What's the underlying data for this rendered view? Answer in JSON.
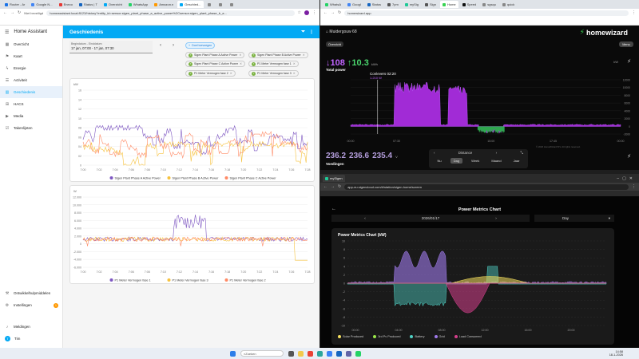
{
  "left_browser": {
    "tabs": [
      "Router - Ar",
      "Google N...",
      "Eneco",
      "Status | T",
      "Overzicht",
      "WhatsApp",
      "Amazon.n",
      "Geschied...",
      "",
      "",
      ""
    ],
    "url_security": "Niet beveiligd",
    "url": "homeassistant.local:8123/history?entity_id=sensor.sigen_plant_phase_a_active_power%2Csensor.sigen_plant_phase_b_a..."
  },
  "right_browser_top": {
    "tabs": [
      "WhatsA",
      "Googl",
      "Status",
      "7pm",
      "mySig",
      "Sign",
      "Home",
      "Speed",
      "sgsqu",
      "quick"
    ],
    "url": "homewizard.app"
  },
  "right_browser_bottom": {
    "tab": "mySigen",
    "url": "app-eu.sigencloud.com/#/station/sigen-home/screen"
  },
  "ha": {
    "brand": "Home Assistant",
    "title": "Geschiedenis",
    "sidebar": [
      {
        "label": "Overzicht",
        "icon": "overview-icon"
      },
      {
        "label": "Kaart",
        "icon": "map-icon"
      },
      {
        "label": "Energie",
        "icon": "energy-icon"
      },
      {
        "label": "Activiteit",
        "icon": "activity-icon"
      },
      {
        "label": "Geschiedenis",
        "icon": "history-icon",
        "selected": true
      },
      {
        "label": "HACS",
        "icon": "hacs-icon"
      },
      {
        "label": "Media",
        "icon": "media-icon"
      },
      {
        "label": "Takenlijsten",
        "icon": "todo-icon"
      }
    ],
    "sidebar_bottom": [
      {
        "label": "Ontwikkelhulpmiddelen",
        "icon": "devtools-icon"
      },
      {
        "label": "Instellingen",
        "icon": "settings-icon",
        "badge": "1"
      },
      {
        "label": "Meldingen",
        "icon": "bell-icon"
      },
      {
        "label": "Tim",
        "icon": "user-icon",
        "avatar": "T"
      }
    ],
    "date_range_label": "Begindatum - Einddatum",
    "date_range_value": "17 jan, 07:00 - 17 jan, 07:30",
    "add_target": "Doel toevoegen",
    "targets": [
      "Sigen Plant Phase A Active Power",
      "Sigen Plant Phase B Active Power",
      "Sigen Plant Phase C Active Power",
      "P1 Meter Vermogen fase 1",
      "P1 Meter Vermogen fase 2",
      "P1 Meter Vermogen fase 3"
    ],
    "chart1": {
      "unit": "kW",
      "yticks": [
        "16",
        "14",
        "12",
        "10",
        "08",
        "06",
        "04",
        "02",
        "0"
      ],
      "xticks": [
        "7:00",
        "7:02",
        "7:04",
        "7:06",
        "7:08",
        "7:10",
        "7:12",
        "7:14",
        "7:16",
        "7:18",
        "7:20",
        "7:22",
        "7:24",
        "7:26",
        "7:28"
      ],
      "legend": [
        {
          "label": "Sigen Plant Phase A Active Power",
          "color": "#7e57c2"
        },
        {
          "label": "Sigen Plant Phase B Active Power",
          "color": "#f6c23e"
        },
        {
          "label": "Sigen Plant Phase C Active Power",
          "color": "#ff8a65"
        }
      ]
    },
    "chart2": {
      "unit": "W",
      "yticks": [
        "12.000",
        "10.000",
        "8.000",
        "6.000",
        "4.000",
        "2.000",
        "0",
        "-2.000",
        "-4.000",
        "-6.000"
      ],
      "xticks": [
        "7:00",
        "7:02",
        "7:04",
        "7:06",
        "7:08",
        "7:10",
        "7:12",
        "7:14",
        "7:16",
        "7:18",
        "7:20",
        "7:22",
        "7:24",
        "7:26",
        "7:28"
      ],
      "legend": [
        {
          "label": "P1 Meter Vermogen fase 1",
          "color": "#7e57c2"
        },
        {
          "label": "P1 Meter Vermogen fase 3",
          "color": "#f6c23e"
        },
        {
          "label": "P1 Meter Vermogen fase 2",
          "color": "#ff8a65"
        }
      ]
    }
  },
  "homewizard": {
    "device": "Muidergouw 68",
    "logo": "homewizard",
    "overview_btn": "Overzicht",
    "menu_btn": "Menu",
    "import_value": "108",
    "export_value": "10.3",
    "unit": "kWh",
    "total_label": "Total power",
    "tooltip_title": "Conlevers 02:20",
    "tooltip_value": "1.210 W",
    "x_labels": [
      "00:00",
      "07:30",
      "15:00",
      "17:45",
      "00:00"
    ],
    "y_labels": [
      "12000",
      "10000",
      "8000",
      "6000",
      "4000",
      "2000",
      "0",
      "-2000"
    ],
    "power_unit": "kW",
    "voltages": [
      "236.2",
      "236.6",
      "235.4"
    ],
    "voltage_unit": "V",
    "voltage_label": "Voedingen",
    "period_title": "Distance",
    "periods": [
      "Nu",
      "Dag",
      "Week",
      "Maand",
      "Jaar"
    ],
    "selected_period": "Dag",
    "copyright": "© 2026 HomeWizard B.V. All rights reserved."
  },
  "sigen": {
    "title": "Power Metrics Chart",
    "date": "2026/01/17",
    "period": "Day",
    "chart_title": "Power Metrics Chart (kW)",
    "y_labels": [
      "10",
      "8",
      "6",
      "4",
      "2",
      "0",
      "-2",
      "-4",
      "-6",
      "-8",
      "-10"
    ],
    "x_labels": [
      "00:00",
      "04:00",
      "08:00",
      "12:00",
      "16:00",
      "20:00"
    ],
    "legend": [
      {
        "label": "Solar Produced",
        "color": "#f6e05e"
      },
      {
        "label": "3rd Pv Produced",
        "color": "#9ae64a"
      },
      {
        "label": "Battery",
        "color": "#4fd1c5"
      },
      {
        "label": "Grid",
        "color": "#9f7aea"
      },
      {
        "label": "Load Consumed",
        "color": "#d53f8c"
      }
    ]
  },
  "taskbar": {
    "search": "Zoeken",
    "time": "14:58",
    "date": "18-1-2026"
  }
}
